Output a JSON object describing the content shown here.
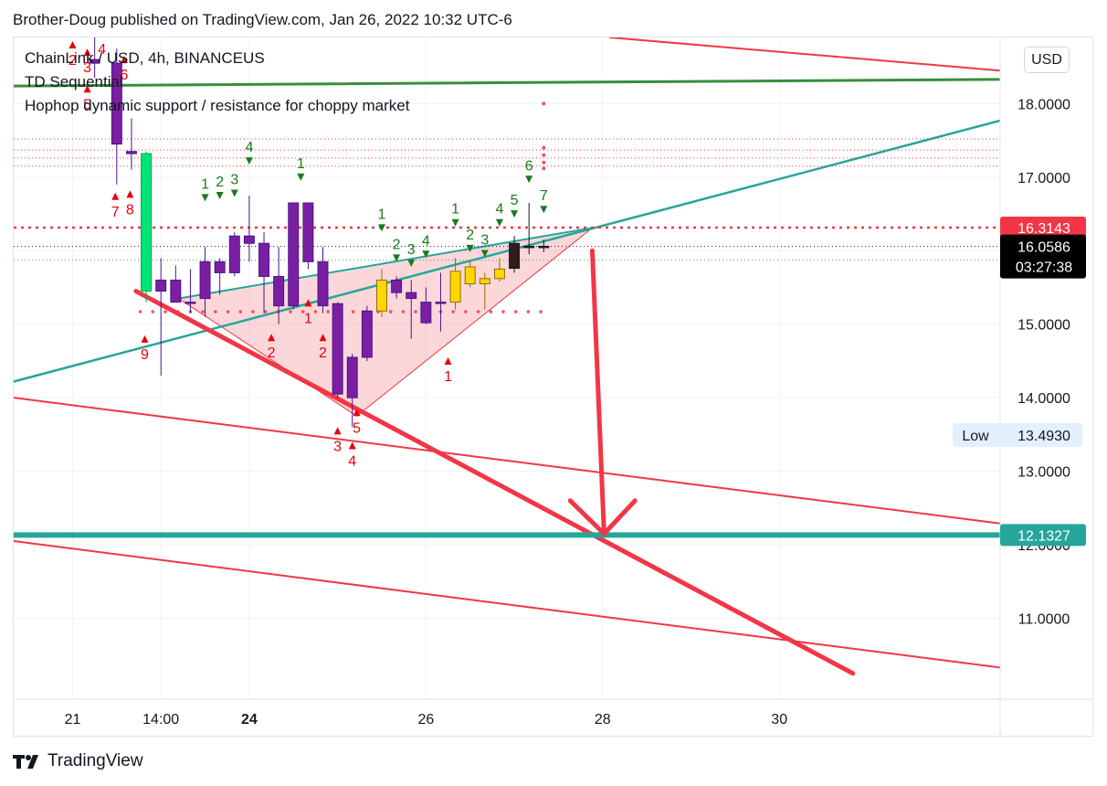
{
  "header": {
    "published": "Brother-Doug published on TradingView.com, Jan 26, 2022 10:32 UTC-6"
  },
  "legend": {
    "symbol": "ChainLink / USD, 4h, BINANCEUS",
    "indicator1": "TD Sequential",
    "indicator2": "Hophop dynamic support / resistance for choppy market"
  },
  "currency_button": "USD",
  "footer": {
    "brand": "TradingView"
  },
  "colors": {
    "red": "#f23645",
    "green_line": "#388e3c",
    "teal": "#26a69a",
    "purple": "#7b1fa2",
    "yellow": "#ffd600",
    "lime": "#00e676",
    "label_green": "#1b7a1b"
  },
  "chart_data": {
    "type": "candlestick",
    "x_axis_ticks": [
      {
        "t": 0,
        "label": "21",
        "bold": false
      },
      {
        "t": 6,
        "label": "14:00",
        "bold": false
      },
      {
        "t": 12,
        "label": "24",
        "bold": true
      },
      {
        "t": 24,
        "label": "26",
        "bold": false
      },
      {
        "t": 36,
        "label": "28",
        "bold": false
      },
      {
        "t": 48,
        "label": "30",
        "bold": false
      }
    ],
    "y_axis_ticks": [
      11,
      12,
      13,
      14,
      15,
      16,
      17,
      18
    ],
    "ylim": [
      9.9,
      18.9
    ],
    "xlim": [
      -4,
      63
    ],
    "candles": [
      {
        "t": 1.5,
        "o": 18.6,
        "h": 19.1,
        "l": 18.35,
        "c": 18.55,
        "color": "purple"
      },
      {
        "t": 3,
        "o": 18.55,
        "h": 18.75,
        "l": 16.9,
        "c": 17.45,
        "color": "purple"
      },
      {
        "t": 4,
        "o": 17.35,
        "h": 17.8,
        "l": 17.1,
        "c": 17.32,
        "color": "purple"
      },
      {
        "t": 5,
        "o": 15.45,
        "h": 17.35,
        "l": 15.3,
        "c": 17.32,
        "color": "lime"
      },
      {
        "t": 6,
        "o": 15.6,
        "h": 15.9,
        "l": 14.3,
        "c": 15.45,
        "color": "purple"
      },
      {
        "t": 7,
        "o": 15.6,
        "h": 15.8,
        "l": 15.3,
        "c": 15.3,
        "color": "purple"
      },
      {
        "t": 8,
        "o": 15.3,
        "h": 15.75,
        "l": 15.15,
        "c": 15.3,
        "color": "purple"
      },
      {
        "t": 9,
        "o": 15.35,
        "h": 16.05,
        "l": 15.1,
        "c": 15.85,
        "color": "purple"
      },
      {
        "t": 10,
        "o": 15.7,
        "h": 15.9,
        "l": 15.4,
        "c": 15.85,
        "color": "purple"
      },
      {
        "t": 11,
        "o": 15.7,
        "h": 16.25,
        "l": 15.65,
        "c": 16.2,
        "color": "purple"
      },
      {
        "t": 12,
        "o": 16.2,
        "h": 16.75,
        "l": 15.85,
        "c": 16.1,
        "color": "purple"
      },
      {
        "t": 13,
        "o": 16.1,
        "h": 16.25,
        "l": 15.15,
        "c": 15.65,
        "color": "purple"
      },
      {
        "t": 14,
        "o": 15.65,
        "h": 16.05,
        "l": 15.0,
        "c": 15.25,
        "color": "purple"
      },
      {
        "t": 15,
        "o": 15.25,
        "h": 16.65,
        "l": 15.2,
        "c": 16.65,
        "color": "purple"
      },
      {
        "t": 16,
        "o": 16.65,
        "h": 16.65,
        "l": 15.75,
        "c": 15.85,
        "color": "purple"
      },
      {
        "t": 17,
        "o": 15.85,
        "h": 16.05,
        "l": 15.15,
        "c": 15.25,
        "color": "purple"
      },
      {
        "t": 18,
        "o": 15.28,
        "h": 15.3,
        "l": 14.0,
        "c": 14.05,
        "color": "purple"
      },
      {
        "t": 19,
        "o": 14.0,
        "h": 14.6,
        "l": 13.6,
        "c": 14.55,
        "color": "purple"
      },
      {
        "t": 20,
        "o": 14.55,
        "h": 15.25,
        "l": 14.5,
        "c": 15.18,
        "color": "purple"
      },
      {
        "t": 21,
        "o": 15.18,
        "h": 15.75,
        "l": 15.1,
        "c": 15.6,
        "color": "yellow"
      },
      {
        "t": 22,
        "o": 15.6,
        "h": 15.65,
        "l": 15.35,
        "c": 15.43,
        "color": "purple"
      },
      {
        "t": 23,
        "o": 15.43,
        "h": 15.6,
        "l": 14.8,
        "c": 15.35,
        "color": "purple"
      },
      {
        "t": 24,
        "o": 15.3,
        "h": 15.5,
        "l": 15.0,
        "c": 15.02,
        "color": "purple"
      },
      {
        "t": 25,
        "o": 15.3,
        "h": 15.7,
        "l": 14.9,
        "c": 15.3,
        "color": "purple"
      },
      {
        "t": 26,
        "o": 15.3,
        "h": 15.9,
        "l": 15.2,
        "c": 15.72,
        "color": "yellow"
      },
      {
        "t": 27,
        "o": 15.55,
        "h": 15.85,
        "l": 15.5,
        "c": 15.78,
        "color": "yellow"
      },
      {
        "t": 28,
        "o": 15.55,
        "h": 15.7,
        "l": 15.2,
        "c": 15.62,
        "color": "yellow"
      },
      {
        "t": 29,
        "o": 15.62,
        "h": 15.9,
        "l": 15.58,
        "c": 15.75,
        "color": "yellow"
      },
      {
        "t": 30,
        "o": 15.76,
        "h": 16.2,
        "l": 15.7,
        "c": 16.1,
        "color": "dark"
      },
      {
        "t": 31,
        "o": 16.06,
        "h": 16.65,
        "l": 15.95,
        "c": 16.05,
        "color": "dark"
      },
      {
        "t": 32,
        "o": 16.05,
        "h": 16.15,
        "l": 15.98,
        "c": 16.06,
        "color": "dark"
      }
    ],
    "td_labels": [
      {
        "t": 0,
        "v": 18.8,
        "n": "2",
        "c": "red"
      },
      {
        "t": 1,
        "v": 18.7,
        "n": "3",
        "c": "red"
      },
      {
        "t": 2,
        "v": 18.95,
        "n": "4",
        "c": "red"
      },
      {
        "t": 1,
        "v": 18.2,
        "n": "5",
        "c": "red"
      },
      {
        "t": 3.5,
        "v": 18.6,
        "n": "6",
        "c": "red"
      },
      {
        "t": 2.9,
        "v": 16.74,
        "n": "7",
        "c": "red"
      },
      {
        "t": 3.9,
        "v": 16.77,
        "n": "8",
        "c": "red"
      },
      {
        "t": 4.9,
        "v": 14.8,
        "n": "9",
        "c": "red"
      },
      {
        "t": 9,
        "v": 16.72,
        "n": "1",
        "c": "green"
      },
      {
        "t": 10,
        "v": 16.75,
        "n": "2",
        "c": "green"
      },
      {
        "t": 11,
        "v": 16.78,
        "n": "3",
        "c": "green"
      },
      {
        "t": 12,
        "v": 17.22,
        "n": "4",
        "c": "green"
      },
      {
        "t": 15.5,
        "v": 17.0,
        "n": "1",
        "c": "green"
      },
      {
        "t": 13.5,
        "v": 14.82,
        "n": "2",
        "c": "red"
      },
      {
        "t": 16,
        "v": 15.29,
        "n": "1",
        "c": "red"
      },
      {
        "t": 17,
        "v": 14.82,
        "n": "2",
        "c": "red"
      },
      {
        "t": 18,
        "v": 13.55,
        "n": "3",
        "c": "red"
      },
      {
        "t": 19,
        "v": 13.35,
        "n": "4",
        "c": "red"
      },
      {
        "t": 19.3,
        "v": 13.8,
        "n": "5",
        "c": "red"
      },
      {
        "t": 21,
        "v": 16.31,
        "n": "1",
        "c": "green"
      },
      {
        "t": 22,
        "v": 15.9,
        "n": "2",
        "c": "green"
      },
      {
        "t": 23,
        "v": 15.83,
        "n": "3",
        "c": "green"
      },
      {
        "t": 24,
        "v": 15.95,
        "n": "4",
        "c": "green"
      },
      {
        "t": 25.5,
        "v": 14.5,
        "n": "1",
        "c": "red"
      },
      {
        "t": 26,
        "v": 16.38,
        "n": "1",
        "c": "green"
      },
      {
        "t": 27,
        "v": 16.03,
        "n": "2",
        "c": "green"
      },
      {
        "t": 28,
        "v": 15.96,
        "n": "3",
        "c": "green"
      },
      {
        "t": 29,
        "v": 16.38,
        "n": "4",
        "c": "green"
      },
      {
        "t": 30,
        "v": 16.5,
        "n": "5",
        "c": "green"
      },
      {
        "t": 31,
        "v": 16.97,
        "n": "6",
        "c": "green"
      },
      {
        "t": 32,
        "v": 16.56,
        "n": "7",
        "c": "green"
      }
    ],
    "price_labels": [
      {
        "label": "16.3143",
        "v": 16.3143,
        "kind": "red"
      },
      {
        "label": "16.0586",
        "sub": "03:27:38",
        "v": 16.0586,
        "kind": "dark"
      },
      {
        "label": "13.4930",
        "tag": "Low",
        "v": 13.493,
        "kind": "low"
      },
      {
        "label": "12.1327",
        "v": 12.1327,
        "kind": "teal"
      }
    ],
    "levels": {
      "dotted_resistance": 16.3143,
      "current_price": 16.0586,
      "support": 12.1327,
      "dotted_low": 15.17
    }
  }
}
